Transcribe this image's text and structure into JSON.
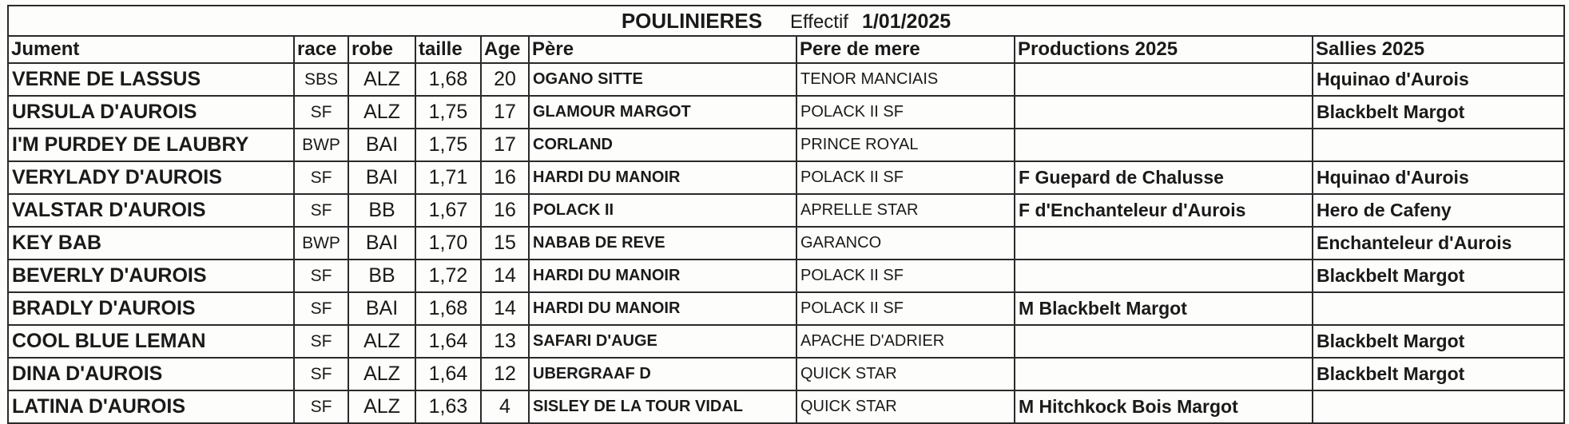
{
  "title": {
    "main": "POULINIERES",
    "effectif": "Effectif",
    "date": "1/01/2025"
  },
  "headers": [
    "Jument",
    "race",
    "robe",
    "taille",
    "Age",
    "Père",
    "Pere de mere",
    "Productions 2025",
    "Sallies 2025"
  ],
  "rows": [
    [
      "VERNE DE LASSUS",
      "SBS",
      "ALZ",
      "1,68",
      "20",
      "OGANO SITTE",
      "TENOR MANCIAIS",
      "",
      "Hquinao d'Aurois"
    ],
    [
      "URSULA D'AUROIS",
      "SF",
      "ALZ",
      "1,75",
      "17",
      "GLAMOUR MARGOT",
      "POLACK II SF",
      "",
      "Blackbelt Margot"
    ],
    [
      "I'M PURDEY DE LAUBRY",
      "BWP",
      "BAI",
      "1,75",
      "17",
      "CORLAND",
      "PRINCE ROYAL",
      "",
      ""
    ],
    [
      "VERYLADY D'AUROIS",
      "SF",
      "BAI",
      "1,71",
      "16",
      "HARDI DU MANOIR",
      "POLACK II SF",
      "F Guepard de Chalusse",
      "Hquinao d'Aurois"
    ],
    [
      "VALSTAR D'AUROIS",
      "SF",
      "BB",
      "1,67",
      "16",
      "POLACK II",
      "APRELLE STAR",
      "F d'Enchanteleur d'Aurois",
      "Hero de Cafeny"
    ],
    [
      "KEY BAB",
      "BWP",
      "BAI",
      "1,70",
      "15",
      "NABAB DE REVE",
      "GARANCO",
      "",
      "Enchanteleur d'Aurois"
    ],
    [
      "BEVERLY D'AUROIS",
      "SF",
      "BB",
      "1,72",
      "14",
      "HARDI DU MANOIR",
      "POLACK II SF",
      "",
      "Blackbelt Margot"
    ],
    [
      "BRADLY D'AUROIS",
      "SF",
      "BAI",
      "1,68",
      "14",
      "HARDI DU MANOIR",
      "POLACK II SF",
      "M Blackbelt Margot",
      ""
    ],
    [
      "COOL BLUE LEMAN",
      "SF",
      "ALZ",
      "1,64",
      "13",
      "SAFARI D'AUGE",
      "APACHE D'ADRIER",
      "",
      "Blackbelt Margot"
    ],
    [
      "DINA D'AUROIS",
      "SF",
      "ALZ",
      "1,64",
      "12",
      "UBERGRAAF D",
      "QUICK STAR",
      "",
      "Blackbelt Margot"
    ],
    [
      "LATINA D'AUROIS",
      "SF",
      "ALZ",
      "1,63",
      "4",
      "SISLEY DE LA TOUR VIDAL",
      "QUICK STAR",
      "M Hitchkock Bois Margot",
      ""
    ]
  ]
}
